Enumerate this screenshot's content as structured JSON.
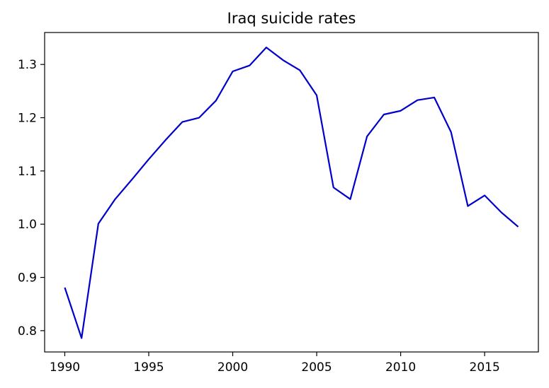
{
  "chart_data": {
    "type": "line",
    "title": "Iraq suicide rates",
    "xlabel": "",
    "ylabel": "",
    "xlim": [
      1988.8,
      2018.2
    ],
    "ylim": [
      0.76,
      1.36
    ],
    "x_ticks": [
      1990,
      1995,
      2000,
      2005,
      2010,
      2015
    ],
    "y_ticks": [
      0.8,
      0.9,
      1.0,
      1.1,
      1.2,
      1.3
    ],
    "grid": false,
    "legend": false,
    "series": [
      {
        "color": "#0000cc",
        "x": [
          1990,
          1991,
          1992,
          1993,
          1994,
          1995,
          1996,
          1997,
          1998,
          1999,
          2000,
          2001,
          2002,
          2003,
          2004,
          2005,
          2006,
          2007,
          2008,
          2009,
          2010,
          2011,
          2012,
          2013,
          2014,
          2015,
          2016,
          2017
        ],
        "y": [
          0.881,
          0.786,
          1.001,
          1.047,
          1.084,
          1.122,
          1.158,
          1.192,
          1.2,
          1.232,
          1.287,
          1.298,
          1.332,
          1.308,
          1.289,
          1.242,
          1.069,
          1.047,
          1.165,
          1.206,
          1.213,
          1.233,
          1.238,
          1.173,
          1.034,
          1.054,
          1.022,
          0.995
        ]
      }
    ]
  }
}
